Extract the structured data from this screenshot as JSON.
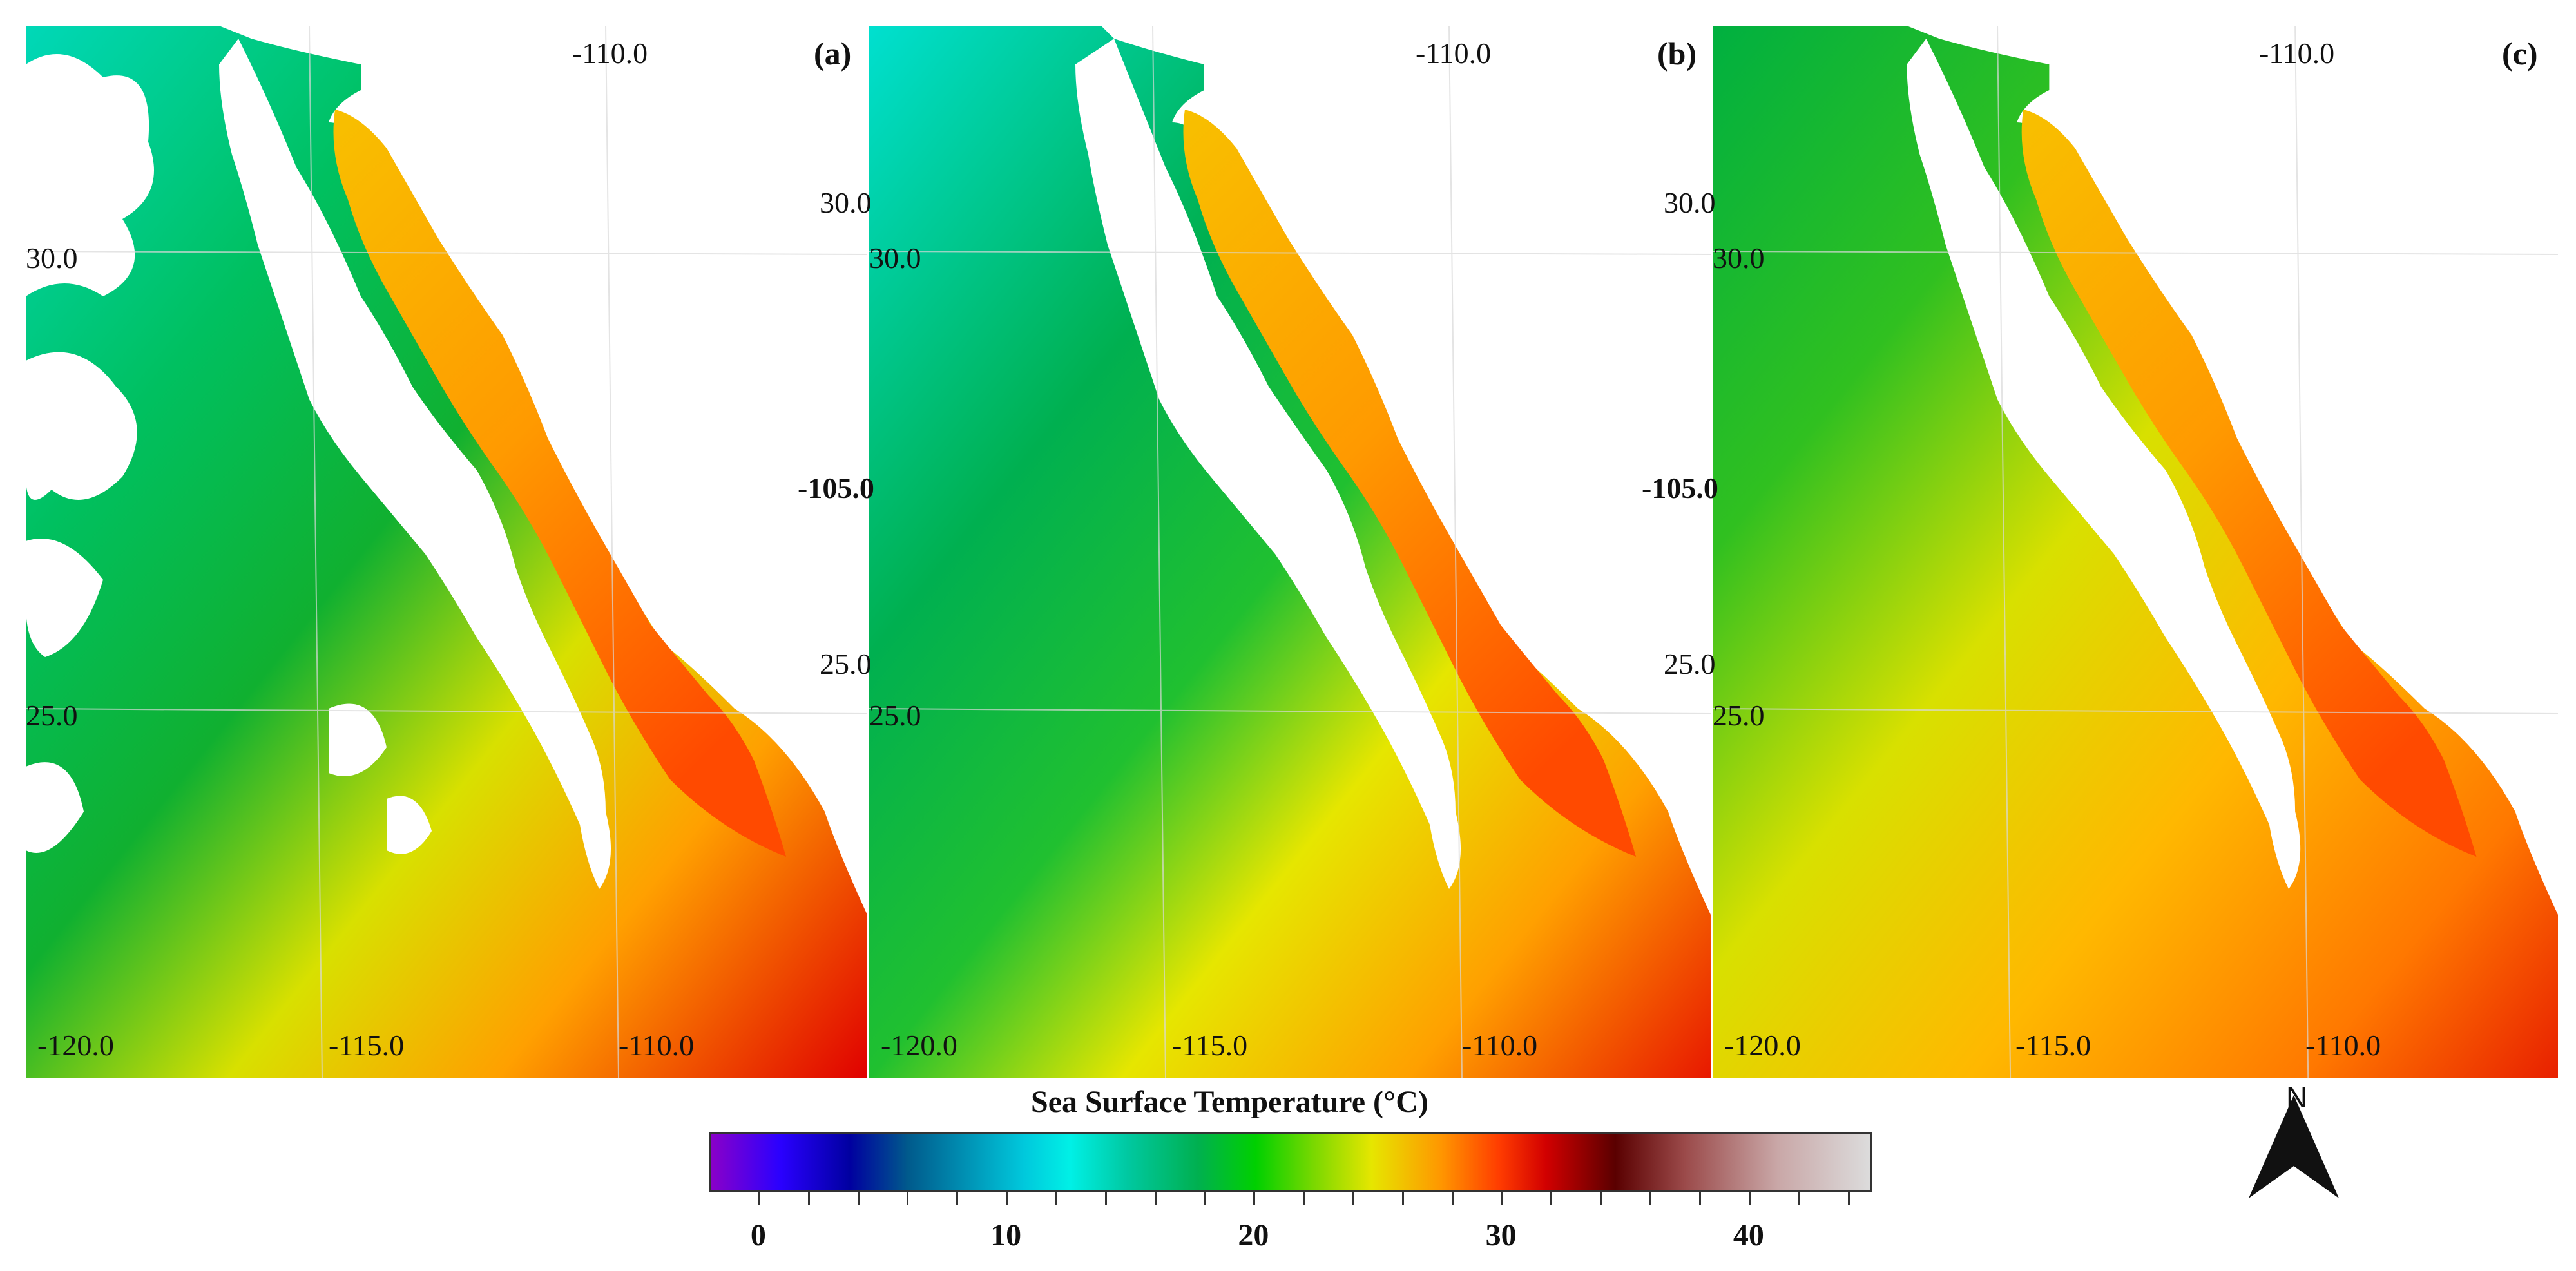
{
  "panels": [
    {
      "label": "(a)",
      "top_lon_label": "-110.0",
      "lat_labels": [
        "30.0",
        "25.0"
      ],
      "right_labels": [],
      "bottom_lon_labels": [
        "-120.0",
        "-115.0",
        "-110.0"
      ]
    },
    {
      "label": "(b)",
      "top_lon_label": "-110.0",
      "lat_labels": [
        "30.0",
        "25.0"
      ],
      "right_labels": [
        "30.0",
        "-105.0",
        "25.0"
      ],
      "bottom_lon_labels": [
        "-120.0",
        "-115.0",
        "-110.0"
      ]
    },
    {
      "label": "(c)",
      "top_lon_label": "-110.0",
      "lat_labels": [
        "30.0",
        "25.0"
      ],
      "right_labels": [
        "30.0",
        "-105.0",
        "25.0"
      ],
      "bottom_lon_labels": [
        "-120.0",
        "-115.0",
        "-110.0"
      ]
    }
  ],
  "colorbar": {
    "title": "Sea Surface Temperature (°C)",
    "ticks": [
      "0",
      "10",
      "20",
      "30",
      "40"
    ],
    "range": [
      -2,
      45
    ]
  },
  "north_arrow": {
    "label": "N",
    "icon": "north-arrow-icon"
  },
  "colors": {
    "cold": "#00c8dc",
    "cool": "#00b050",
    "warm": "#e6e600",
    "hot": "#ff9600",
    "hottest": "#d20000",
    "land": "#ffffff"
  }
}
